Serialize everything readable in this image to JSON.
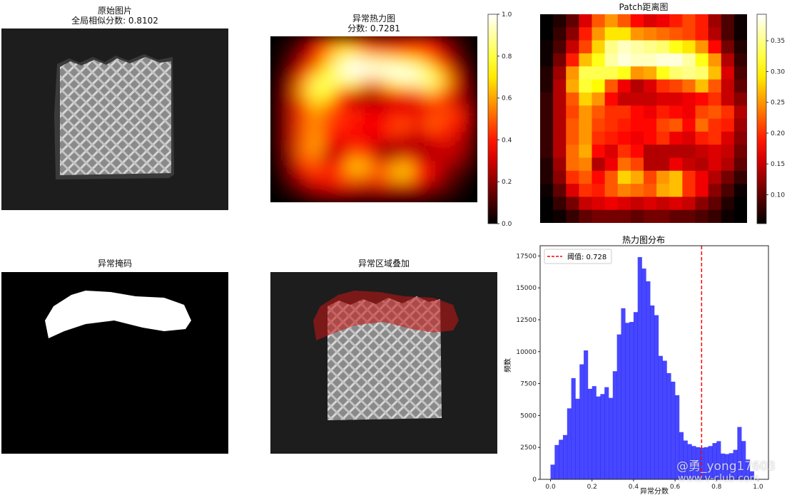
{
  "panels": {
    "original": {
      "title": "原始图片",
      "subtitle": "全局相似分数: 0.8102"
    },
    "heatmap": {
      "title": "异常热力图",
      "subtitle": "分数: 0.7281",
      "colorbar_ticks": [
        "0.0",
        "0.2",
        "0.4",
        "0.6",
        "0.8",
        "1.0"
      ],
      "colorbar_range": [
        0,
        1
      ]
    },
    "patch": {
      "title": "Patch距离图",
      "colorbar_ticks": [
        "0.10",
        "0.15",
        "0.20",
        "0.25",
        "0.30",
        "0.35"
      ],
      "colorbar_range": [
        0.053,
        0.393
      ]
    },
    "mask": {
      "title": "异常掩码"
    },
    "overlay": {
      "title": "异常区域叠加"
    }
  },
  "watermark": {
    "line1": "@勇_yong17603",
    "line2": "www.v-club.com"
  },
  "chart_data": [
    {
      "type": "heatmap",
      "title": "Patch距离图",
      "colormap": "hot",
      "values": [
        [
          0.05,
          0.07,
          0.1,
          0.16,
          0.22,
          0.25,
          0.22,
          0.18,
          0.16,
          0.17,
          0.19,
          0.21,
          0.19,
          0.13,
          0.09,
          0.06
        ],
        [
          0.05,
          0.08,
          0.12,
          0.19,
          0.25,
          0.29,
          0.29,
          0.25,
          0.24,
          0.23,
          0.22,
          0.21,
          0.19,
          0.14,
          0.09,
          0.06
        ],
        [
          0.06,
          0.09,
          0.15,
          0.21,
          0.28,
          0.35,
          0.37,
          0.36,
          0.35,
          0.34,
          0.31,
          0.29,
          0.25,
          0.18,
          0.11,
          0.07
        ],
        [
          0.06,
          0.11,
          0.19,
          0.27,
          0.31,
          0.36,
          0.38,
          0.37,
          0.37,
          0.38,
          0.38,
          0.36,
          0.31,
          0.25,
          0.14,
          0.08
        ],
        [
          0.07,
          0.13,
          0.25,
          0.33,
          0.33,
          0.33,
          0.31,
          0.25,
          0.26,
          0.31,
          0.34,
          0.35,
          0.34,
          0.27,
          0.16,
          0.09
        ],
        [
          0.07,
          0.14,
          0.26,
          0.32,
          0.3,
          0.22,
          0.17,
          0.14,
          0.16,
          0.2,
          0.21,
          0.23,
          0.27,
          0.22,
          0.15,
          0.1
        ],
        [
          0.08,
          0.14,
          0.22,
          0.28,
          0.25,
          0.18,
          0.15,
          0.15,
          0.15,
          0.16,
          0.16,
          0.17,
          0.18,
          0.2,
          0.15,
          0.12
        ],
        [
          0.08,
          0.14,
          0.21,
          0.25,
          0.22,
          0.2,
          0.2,
          0.18,
          0.17,
          0.19,
          0.18,
          0.17,
          0.21,
          0.22,
          0.2,
          0.14
        ],
        [
          0.08,
          0.14,
          0.22,
          0.25,
          0.21,
          0.2,
          0.19,
          0.18,
          0.18,
          0.21,
          0.22,
          0.18,
          0.23,
          0.2,
          0.19,
          0.13
        ],
        [
          0.08,
          0.14,
          0.22,
          0.25,
          0.2,
          0.19,
          0.18,
          0.17,
          0.18,
          0.2,
          0.17,
          0.16,
          0.19,
          0.2,
          0.16,
          0.12
        ],
        [
          0.08,
          0.14,
          0.23,
          0.26,
          0.18,
          0.16,
          0.2,
          0.18,
          0.14,
          0.14,
          0.14,
          0.14,
          0.15,
          0.16,
          0.15,
          0.11
        ],
        [
          0.07,
          0.13,
          0.23,
          0.24,
          0.14,
          0.17,
          0.23,
          0.21,
          0.14,
          0.14,
          0.17,
          0.15,
          0.14,
          0.16,
          0.14,
          0.1
        ],
        [
          0.07,
          0.12,
          0.2,
          0.22,
          0.18,
          0.22,
          0.28,
          0.26,
          0.21,
          0.25,
          0.27,
          0.2,
          0.17,
          0.14,
          0.11,
          0.08
        ],
        [
          0.06,
          0.1,
          0.16,
          0.2,
          0.19,
          0.22,
          0.24,
          0.23,
          0.22,
          0.26,
          0.27,
          0.2,
          0.17,
          0.12,
          0.09,
          0.06
        ],
        [
          0.05,
          0.08,
          0.11,
          0.15,
          0.16,
          0.17,
          0.16,
          0.15,
          0.16,
          0.15,
          0.16,
          0.15,
          0.12,
          0.1,
          0.07,
          0.05
        ],
        [
          0.05,
          0.06,
          0.08,
          0.1,
          0.11,
          0.11,
          0.11,
          0.1,
          0.11,
          0.11,
          0.1,
          0.1,
          0.09,
          0.08,
          0.06,
          0.05
        ]
      ]
    },
    {
      "type": "bar",
      "title": "热力图分布",
      "xlabel": "异常分数",
      "ylabel": "频数",
      "bin_range": [
        0,
        1
      ],
      "values": [
        1150,
        2690,
        3100,
        3470,
        5560,
        7930,
        6310,
        9010,
        10100,
        7090,
        7300,
        6490,
        6680,
        7220,
        6380,
        8470,
        11350,
        13400,
        12260,
        12330,
        13100,
        17410,
        16510,
        15510,
        13620,
        12860,
        9670,
        9290,
        8320,
        7650,
        6590,
        3700,
        3040,
        2760,
        2610,
        2520,
        2480,
        2520,
        2610,
        2840,
        2990,
        2020,
        1980,
        2050,
        2310,
        4100,
        3000,
        1550,
        630,
        0
      ],
      "bar_color": "#0000ff",
      "xlim": [
        -0.05,
        1.05
      ],
      "ylim": [
        0,
        18300
      ],
      "xticks": [
        "0.0",
        "0.2",
        "0.4",
        "0.6",
        "0.8",
        "1.0"
      ],
      "yticks": [
        "0",
        "2500",
        "5000",
        "7500",
        "10000",
        "12500",
        "15000",
        "17500"
      ],
      "threshold": 0.728,
      "threshold_color": "#ff0000",
      "legend": {
        "label": "阈值: 0.728",
        "placement": "upper-left"
      }
    }
  ]
}
